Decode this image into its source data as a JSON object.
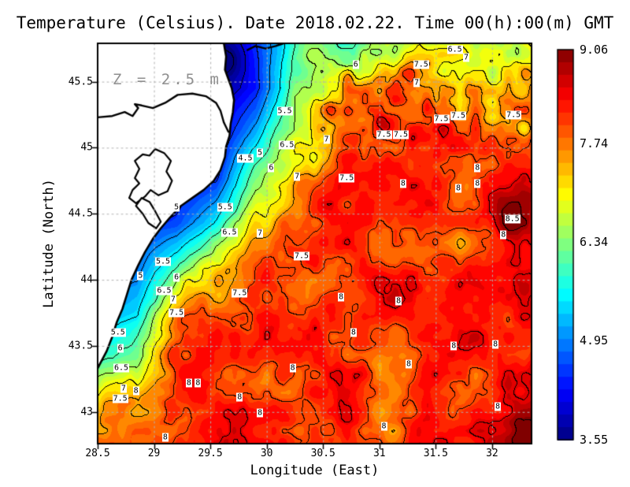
{
  "title": "Temperature (Celsius). Date 2018.02.22. Time 00(h):00(m) GMT",
  "annotation": {
    "depth_label": "Z = 2.5 m"
  },
  "axes": {
    "x": {
      "label": "Longitude (East)",
      "min": 28.5,
      "max": 32.35,
      "tick_labels": [
        "28.5",
        "29",
        "29.5",
        "30",
        "30.5",
        "31",
        "31.5",
        "32"
      ]
    },
    "y": {
      "label": "Latitude (North)",
      "min": 42.76,
      "max": 45.79,
      "tick_labels": [
        "43",
        "43.5",
        "44",
        "44.5",
        "45",
        "45.5"
      ]
    }
  },
  "colorbar": {
    "min": 3.55,
    "max": 9.06,
    "steps": 31,
    "tick_labels": [
      "9.06",
      "7.74",
      "6.34",
      "4.95",
      "3.55"
    ]
  },
  "colors": {
    "land": "#ffffff",
    "coastline": "#000000",
    "contour": "#000000",
    "graticule": "#b2b2b2",
    "annotation_gray": "#8f8f8f",
    "frame": "#000000"
  },
  "chart_data": {
    "type": "heatmap",
    "variable": "Temperature (Celsius)",
    "depth_m": 2.5,
    "date": "2018.02.22",
    "time_gmt": "00(h):00(m)",
    "contour_interval": 0.5,
    "temperature_grid": {
      "lon": [
        28.5,
        28.85,
        29.2,
        29.55,
        29.9,
        30.25,
        30.6,
        30.95,
        31.3,
        31.65,
        32.0,
        32.35
      ],
      "lat": [
        45.79,
        45.45,
        45.11,
        44.78,
        44.44,
        44.1,
        43.77,
        43.43,
        43.09,
        42.76
      ],
      "values": [
        [
          4.0,
          4.0,
          3.8,
          3.6,
          4.5,
          5.8,
          6.4,
          6.5,
          6.6,
          6.7,
          6.9,
          7.0
        ],
        [
          4.0,
          4.0,
          3.7,
          3.6,
          4.3,
          6.2,
          7.1,
          7.7,
          7.6,
          7.4,
          7.3,
          7.4
        ],
        [
          4.2,
          4.1,
          4.0,
          4.0,
          5.2,
          6.9,
          7.6,
          8.0,
          8.0,
          7.7,
          7.6,
          7.7
        ],
        [
          4.3,
          4.3,
          4.2,
          4.4,
          6.4,
          7.5,
          7.9,
          8.1,
          8.0,
          8.0,
          8.2,
          8.3
        ],
        [
          4.5,
          4.5,
          4.6,
          5.6,
          7.2,
          7.8,
          8.0,
          8.1,
          8.0,
          8.1,
          8.3,
          8.5
        ],
        [
          4.8,
          4.9,
          6.1,
          7.4,
          7.9,
          8.1,
          8.1,
          8.1,
          8.0,
          8.0,
          8.1,
          8.2
        ],
        [
          5.2,
          5.4,
          7.5,
          8.0,
          8.1,
          8.0,
          8.1,
          8.0,
          8.0,
          7.9,
          8.0,
          8.1
        ],
        [
          5.8,
          6.2,
          7.9,
          8.1,
          8.2,
          8.1,
          8.0,
          7.9,
          8.0,
          8.0,
          8.1,
          8.2
        ],
        [
          7.0,
          7.8,
          8.1,
          8.2,
          8.2,
          8.1,
          8.1,
          8.0,
          8.1,
          8.0,
          8.2,
          8.3
        ],
        [
          7.8,
          8.1,
          8.2,
          8.3,
          8.2,
          8.2,
          8.2,
          8.1,
          8.2,
          8.1,
          8.3,
          8.6
        ]
      ]
    },
    "local_extrema": [
      [
        29.68,
        45.66,
        -0.5,
        0.1
      ],
      [
        31.25,
        45.56,
        0.85,
        0.07
      ],
      [
        30.72,
        45.52,
        0.7,
        0.05
      ],
      [
        31.42,
        45.32,
        0.6,
        0.06
      ],
      [
        31.05,
        45.18,
        0.55,
        0.06
      ],
      [
        30.55,
        45.3,
        0.5,
        0.05
      ],
      [
        32.2,
        44.45,
        0.5,
        0.14
      ],
      [
        32.3,
        42.82,
        0.5,
        0.12
      ],
      [
        31.15,
        43.8,
        0.3,
        0.1
      ],
      [
        30.55,
        44.6,
        0.35,
        0.08
      ]
    ],
    "contour_labels_format": [
      "value",
      "lon",
      "lat"
    ],
    "contour_labels": [
      [
        4.5,
        29.81,
        44.92
      ],
      [
        5,
        29.94,
        44.96
      ],
      [
        5.5,
        30.16,
        45.28
      ],
      [
        6,
        30.79,
        45.63
      ],
      [
        6.5,
        31.67,
        45.74
      ],
      [
        7,
        31.77,
        45.68
      ],
      [
        7.5,
        31.37,
        45.63
      ],
      [
        7,
        31.33,
        45.49
      ],
      [
        7.5,
        31.55,
        45.22
      ],
      [
        7.5,
        31.7,
        45.24
      ],
      [
        7.5,
        32.19,
        45.25
      ],
      [
        7.5,
        31.04,
        45.1
      ],
      [
        7.5,
        31.19,
        45.1
      ],
      [
        5.5,
        29.63,
        44.55
      ],
      [
        6.5,
        29.67,
        44.36
      ],
      [
        7,
        29.94,
        44.35
      ],
      [
        5,
        29.2,
        44.55
      ],
      [
        6,
        30.04,
        44.85
      ],
      [
        7,
        30.27,
        44.78
      ],
      [
        7.5,
        30.71,
        44.77
      ],
      [
        6.5,
        30.18,
        45.02
      ],
      [
        7,
        30.53,
        45.06
      ],
      [
        5,
        28.88,
        44.03
      ],
      [
        5.5,
        29.08,
        44.14
      ],
      [
        6,
        29.2,
        44.02
      ],
      [
        6.5,
        29.09,
        43.92
      ],
      [
        7,
        29.17,
        43.85
      ],
      [
        7.5,
        29.2,
        43.75
      ],
      [
        7.5,
        29.76,
        43.9
      ],
      [
        7.5,
        30.31,
        44.18
      ],
      [
        5.5,
        28.68,
        43.6
      ],
      [
        6,
        28.7,
        43.48
      ],
      [
        6.5,
        28.71,
        43.33
      ],
      [
        7,
        28.73,
        43.18
      ],
      [
        7.5,
        28.7,
        43.1
      ],
      [
        8,
        28.84,
        43.16
      ],
      [
        8,
        29.31,
        43.22
      ],
      [
        8,
        29.39,
        43.22
      ],
      [
        8,
        29.76,
        43.11
      ],
      [
        8,
        29.94,
        42.99
      ],
      [
        8,
        30.23,
        43.33
      ],
      [
        8,
        30.77,
        43.6
      ],
      [
        8,
        31.26,
        43.36
      ],
      [
        8,
        31.66,
        43.5
      ],
      [
        8,
        32.03,
        43.51
      ],
      [
        8,
        32.05,
        43.04
      ],
      [
        8,
        31.04,
        42.89
      ],
      [
        8,
        31.17,
        43.84
      ],
      [
        8,
        30.66,
        43.87
      ],
      [
        8,
        31.21,
        44.73
      ],
      [
        8,
        31.87,
        44.85
      ],
      [
        8,
        31.7,
        44.69
      ],
      [
        8,
        31.87,
        44.73
      ],
      [
        8.5,
        32.18,
        44.46
      ],
      [
        8,
        32.1,
        44.34
      ],
      [
        8,
        29.1,
        42.81
      ]
    ],
    "coastline_format": [
      "lon",
      "lat"
    ],
    "coastline": [
      [
        29.62,
        45.79
      ],
      [
        29.64,
        45.69
      ],
      [
        29.63,
        45.59
      ],
      [
        29.66,
        45.52
      ],
      [
        29.69,
        45.45
      ],
      [
        29.71,
        45.36
      ],
      [
        29.7,
        45.27
      ],
      [
        29.68,
        45.18
      ],
      [
        29.67,
        45.09
      ],
      [
        29.64,
        45.01
      ],
      [
        29.63,
        44.93
      ],
      [
        29.59,
        44.83
      ],
      [
        29.53,
        44.75
      ],
      [
        29.44,
        44.68
      ],
      [
        29.34,
        44.62
      ],
      [
        29.24,
        44.56
      ],
      [
        29.14,
        44.47
      ],
      [
        29.06,
        44.39
      ],
      [
        28.99,
        44.31
      ],
      [
        28.92,
        44.21
      ],
      [
        28.86,
        44.11
      ],
      [
        28.8,
        44.0
      ],
      [
        28.76,
        43.89
      ],
      [
        28.72,
        43.78
      ],
      [
        28.67,
        43.68
      ],
      [
        28.63,
        43.57
      ],
      [
        28.58,
        43.46
      ],
      [
        28.53,
        43.38
      ],
      [
        28.5,
        43.33
      ]
    ],
    "river": [
      [
        28.5,
        45.23
      ],
      [
        28.63,
        45.24
      ],
      [
        28.74,
        45.27
      ],
      [
        28.81,
        45.24
      ],
      [
        28.86,
        45.3
      ],
      [
        28.83,
        45.33
      ],
      [
        28.89,
        45.32
      ],
      [
        28.99,
        45.3
      ],
      [
        29.1,
        45.34
      ],
      [
        29.21,
        45.4
      ],
      [
        29.34,
        45.41
      ],
      [
        29.46,
        45.39
      ],
      [
        29.55,
        45.34
      ],
      [
        29.59,
        45.28
      ],
      [
        29.62,
        45.19
      ],
      [
        29.66,
        45.12
      ]
    ],
    "lagoons": [
      [
        [
          29.01,
          44.99
        ],
        [
          29.09,
          44.96
        ],
        [
          29.15,
          44.9
        ],
        [
          29.11,
          44.82
        ],
        [
          29.16,
          44.75
        ],
        [
          29.12,
          44.67
        ],
        [
          29.04,
          44.64
        ],
        [
          28.97,
          44.68
        ],
        [
          28.92,
          44.63
        ],
        [
          28.84,
          44.58
        ],
        [
          28.78,
          44.62
        ],
        [
          28.81,
          44.68
        ],
        [
          28.87,
          44.73
        ],
        [
          28.83,
          44.77
        ],
        [
          28.87,
          44.84
        ],
        [
          28.83,
          44.9
        ],
        [
          28.9,
          44.95
        ],
        [
          28.96,
          44.94
        ]
      ],
      [
        [
          28.89,
          44.62
        ],
        [
          28.96,
          44.59
        ],
        [
          29.01,
          44.52
        ],
        [
          29.06,
          44.44
        ],
        [
          29.02,
          44.39
        ],
        [
          28.95,
          44.43
        ],
        [
          28.9,
          44.5
        ],
        [
          28.84,
          44.56
        ]
      ]
    ],
    "coast_fragment": [
      [
        29.83,
        45.74
      ],
      [
        29.9,
        45.77
      ],
      [
        29.99,
        45.75
      ],
      [
        30.08,
        45.77
      ],
      [
        30.15,
        45.79
      ]
    ]
  }
}
